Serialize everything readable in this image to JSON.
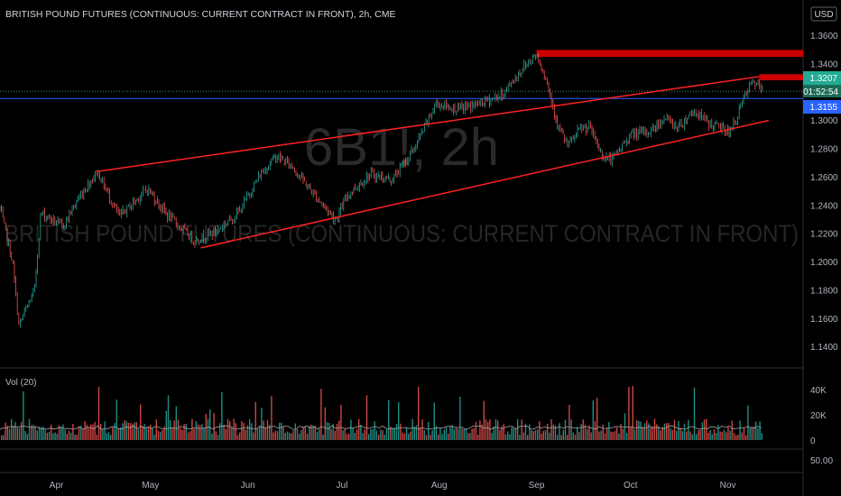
{
  "header": {
    "title": "BRITISH POUND FUTURES (CONTINUOUS: CURRENT CONTRACT IN FRONT), 2h, CME",
    "currency": "USD"
  },
  "watermark": {
    "symbol": "6B1!, 2h",
    "description": "BRITISH POUND FUTURES (CONTINUOUS: CURRENT CONTRACT IN FRONT)"
  },
  "price_tags": {
    "last": "1.3207",
    "countdown": "01:52:54",
    "line": "1.3155"
  },
  "volume_pane": {
    "label": "Vol (20)",
    "ticks": [
      "40K",
      "20K",
      "0"
    ]
  },
  "bottom_pane": {
    "tick": "50.00"
  },
  "colors": {
    "bull": "#26a69a",
    "bear": "#ef5350",
    "trendline": "#ff2222",
    "zone": "#cc0000",
    "last_tag": "#22ab94",
    "blue_line": "#2962ff"
  },
  "chart_data": {
    "type": "candlestick",
    "symbol": "6B1!",
    "interval": "2h",
    "x_labels": [
      "Apr",
      "May",
      "Jun",
      "Jul",
      "Aug",
      "Sep",
      "Oct",
      "Nov"
    ],
    "y_ticks": [
      "1.3600",
      "1.3400",
      "1.3200",
      "1.3000",
      "1.2800",
      "1.2600",
      "1.2400",
      "1.2200",
      "1.2000",
      "1.1800",
      "1.1600",
      "1.1400"
    ],
    "ylim": [
      1.129,
      1.366
    ],
    "xlim": [
      "2020-03-14",
      "2020-11-25"
    ],
    "price_path": [
      [
        "2020-03-14",
        1.238
      ],
      [
        "2020-03-18",
        1.2
      ],
      [
        "2020-03-20",
        1.155
      ],
      [
        "2020-03-25",
        1.18
      ],
      [
        "2020-03-27",
        1.235
      ],
      [
        "2020-04-03",
        1.225
      ],
      [
        "2020-04-08",
        1.245
      ],
      [
        "2020-04-14",
        1.264
      ],
      [
        "2020-04-21",
        1.232
      ],
      [
        "2020-04-30",
        1.252
      ],
      [
        "2020-05-06",
        1.234
      ],
      [
        "2020-05-15",
        1.215
      ],
      [
        "2020-05-22",
        1.222
      ],
      [
        "2020-05-29",
        1.235
      ],
      [
        "2020-06-05",
        1.262
      ],
      [
        "2020-06-10",
        1.275
      ],
      [
        "2020-06-15",
        1.268
      ],
      [
        "2020-06-22",
        1.248
      ],
      [
        "2020-06-29",
        1.23
      ],
      [
        "2020-07-03",
        1.248
      ],
      [
        "2020-07-10",
        1.262
      ],
      [
        "2020-07-17",
        1.258
      ],
      [
        "2020-07-24",
        1.28
      ],
      [
        "2020-07-31",
        1.312
      ],
      [
        "2020-08-07",
        1.308
      ],
      [
        "2020-08-14",
        1.312
      ],
      [
        "2020-08-21",
        1.318
      ],
      [
        "2020-08-28",
        1.338
      ],
      [
        "2020-09-01",
        1.347
      ],
      [
        "2020-09-04",
        1.33
      ],
      [
        "2020-09-08",
        1.295
      ],
      [
        "2020-09-11",
        1.282
      ],
      [
        "2020-09-15",
        1.294
      ],
      [
        "2020-09-18",
        1.295
      ],
      [
        "2020-09-22",
        1.275
      ],
      [
        "2020-09-25",
        1.272
      ],
      [
        "2020-10-01",
        1.29
      ],
      [
        "2020-10-07",
        1.292
      ],
      [
        "2020-10-12",
        1.302
      ],
      [
        "2020-10-16",
        1.295
      ],
      [
        "2020-10-21",
        1.307
      ],
      [
        "2020-10-26",
        1.298
      ],
      [
        "2020-11-02",
        1.292
      ],
      [
        "2020-11-06",
        1.315
      ],
      [
        "2020-11-09",
        1.328
      ],
      [
        "2020-11-12",
        1.321
      ]
    ],
    "annotations": {
      "channel_upper": [
        [
          "2020-04-14",
          1.264
        ],
        [
          "2020-11-11",
          1.331
        ]
      ],
      "channel_lower": [
        [
          "2020-05-17",
          1.21
        ],
        [
          "2020-11-14",
          1.3
        ]
      ],
      "resistance_zones": [
        {
          "from": "2020-09-01",
          "to": "2020-11-25",
          "low": 1.3449,
          "high": 1.3498
        },
        {
          "from": "2020-11-11",
          "to": "2020-11-25",
          "low": 1.3284,
          "high": 1.3327
        }
      ],
      "horizontal_lines": [
        1.3207,
        1.3155
      ]
    },
    "volume": {
      "label": "Vol (20)",
      "ylim": [
        0,
        50000
      ],
      "ticks": [
        0,
        20000,
        40000
      ]
    }
  }
}
